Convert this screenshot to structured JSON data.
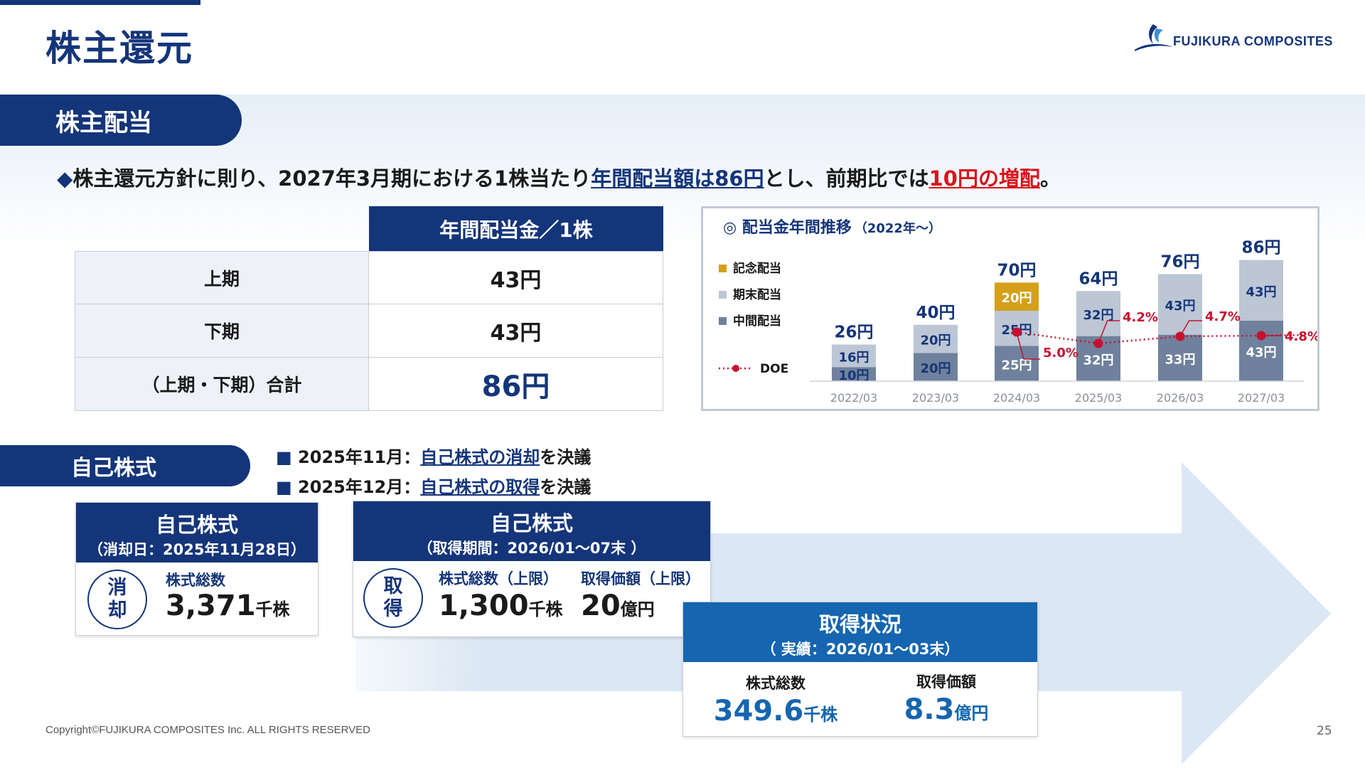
{
  "page": {
    "title": "株主還元",
    "logo_text": "FUJIKURA COMPOSITES",
    "footer": "Copyright©FUJIKURA COMPOSITES Inc. ALL RIGHTS RESERVED",
    "page_number": "25"
  },
  "dividend": {
    "section_label": "株主配当",
    "policy": {
      "marker": "◆",
      "text_1": "株主還元方針に則り、2027年3月期における1株当たり",
      "highlight_1": "年間配当額は86円",
      "text_2": "とし、前期比では",
      "highlight_2": "10円の増配",
      "text_3": "。"
    },
    "table": {
      "header": "年間配当金／1株",
      "rows": [
        {
          "label": "上期",
          "value": "43円"
        },
        {
          "label": "下期",
          "value": "43円"
        },
        {
          "label": "（上期・下期）合計",
          "value": "86円"
        }
      ]
    }
  },
  "chart_data": {
    "type": "bar",
    "title": "◎ 配当金年間推移",
    "subtitle": "（2022年～）",
    "categories": [
      "2022/03",
      "2023/03",
      "2024/03",
      "2025/03",
      "2026/03",
      "2027/03"
    ],
    "series": [
      {
        "name": "中間配当",
        "values": [
          10,
          20,
          25,
          32,
          33,
          43
        ],
        "labels": [
          "10円",
          "20円",
          "25円",
          "32円",
          "33円",
          "43円"
        ],
        "color": "#6f819c"
      },
      {
        "name": "期末配当",
        "values": [
          16,
          20,
          25,
          32,
          43,
          43
        ],
        "labels": [
          "16円",
          "20円",
          "25円",
          "32円",
          "43円",
          "43円"
        ],
        "color": "#bcc6d4"
      },
      {
        "name": "記念配当",
        "values": [
          0,
          0,
          20,
          0,
          0,
          0
        ],
        "labels": [
          "",
          "",
          "20円",
          "",
          "",
          ""
        ],
        "color": "#d4a017"
      }
    ],
    "totals": [
      "26円",
      "40円",
      "70円",
      "64円",
      "76円",
      "86円"
    ],
    "doe": {
      "name": "DOE",
      "color": "#c8102e",
      "points": [
        {
          "category": "2024/03",
          "label": "5.0%"
        },
        {
          "category": "2025/03",
          "label": "4.2%"
        },
        {
          "category": "2026/03",
          "label": "4.7%"
        },
        {
          "category": "2027/03",
          "label": "4.8%"
        }
      ]
    },
    "legend_order": [
      "記念配当",
      "期末配当",
      "中間配当",
      "DOE"
    ],
    "legend_position": "left"
  },
  "treasury": {
    "section_label": "自己株式",
    "bullets": [
      {
        "date": "2025年11月：",
        "link": "自己株式の消却",
        "suffix": "を決議"
      },
      {
        "date": "2025年12月：",
        "link": "自己株式の取得",
        "suffix": "を決議"
      }
    ],
    "cancel_card": {
      "title": "自己株式",
      "subtitle": "（消却日：2025年11月28日）",
      "badge_1": "消",
      "badge_2": "却",
      "label": "株式総数",
      "value": "3,371",
      "unit": "千株"
    },
    "acquire_card": {
      "title": "自己株式",
      "subtitle": "（取得期間：2026/01～07末 ）",
      "badge_1": "取",
      "badge_2": "得",
      "label_1": "株式総数（上限）",
      "value_1": "1,300",
      "unit_1": "千株",
      "label_2": "取得価額（上限）",
      "value_2": "20",
      "unit_2": "億円"
    },
    "status_card": {
      "title": "取得状況",
      "subtitle": "（ 実績：2026/01～03末）",
      "label_1": "株式総数",
      "value_1": "349.6",
      "unit_1": "千株",
      "label_2": "取得価額",
      "value_2": "8.3",
      "unit_2": "億円"
    }
  },
  "colors": {
    "navy": "#14357a",
    "blue": "#1565b0",
    "red": "#d9141c",
    "gold": "#d4a017",
    "arrow": "#dbe7f4"
  }
}
